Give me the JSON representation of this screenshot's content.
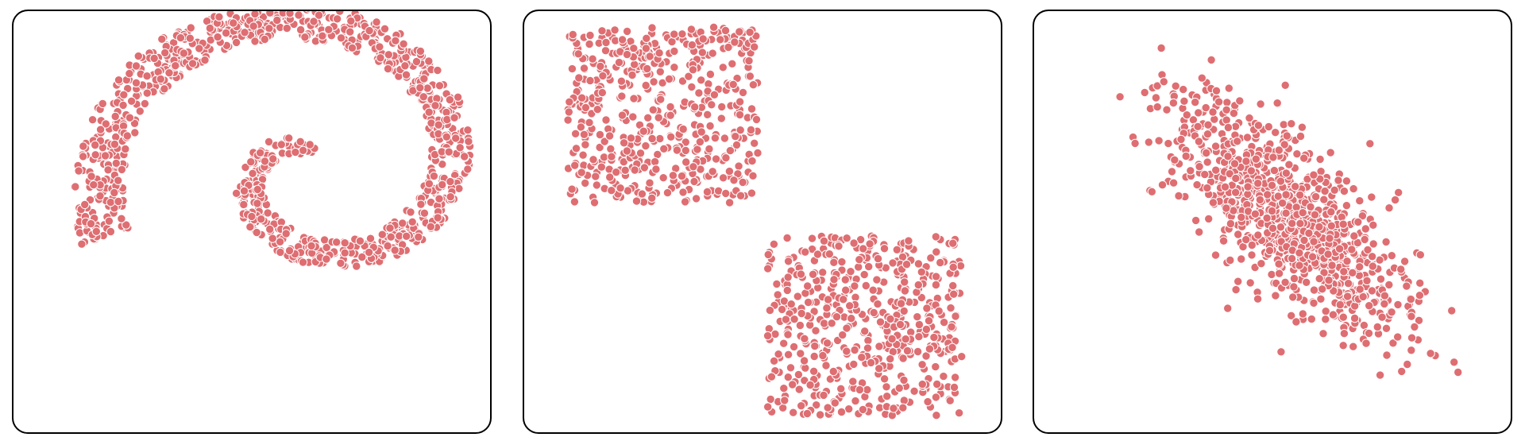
{
  "chart_data": [
    {
      "type": "scatter",
      "title": "",
      "xlabel": "",
      "ylabel": "",
      "grid": false,
      "marker_color": "#de6e72",
      "marker_edge": "#ffffff",
      "xlim": [
        -1.05,
        1.05
      ],
      "ylim": [
        -1.05,
        1.05
      ],
      "shape": "spiral",
      "point_count": 1000,
      "spiral": {
        "center": [
          0.27,
          0.26
        ],
        "start_radius": 0.06,
        "end_radius": 0.98,
        "turns": 1.35,
        "band_width": 0.16,
        "start_angle_deg": 75
      }
    },
    {
      "type": "scatter",
      "title": "",
      "xlabel": "",
      "ylabel": "",
      "grid": false,
      "marker_color": "#de6e72",
      "marker_edge": "#ffffff",
      "xlim": [
        -1.05,
        1.05
      ],
      "ylim": [
        -1.05,
        1.05
      ],
      "shape": "two-uniform-squares",
      "point_count": 1000,
      "squares": [
        {
          "x": [
            -0.86,
            -0.02
          ],
          "y": [
            0.09,
            0.97
          ]
        },
        {
          "x": [
            0.02,
            0.88
          ],
          "y": [
            -0.97,
            -0.07
          ]
        }
      ]
    },
    {
      "type": "scatter",
      "title": "",
      "xlabel": "",
      "ylabel": "",
      "grid": false,
      "marker_color": "#de6e72",
      "marker_edge": "#ffffff",
      "xlim": [
        -1.05,
        1.05
      ],
      "ylim": [
        -1.05,
        1.05
      ],
      "shape": "correlated-gaussian",
      "point_count": 1000,
      "gaussian": {
        "mean": [
          0.07,
          0.02
        ],
        "std": [
          0.26,
          0.29
        ],
        "correlation": -0.72
      }
    }
  ]
}
